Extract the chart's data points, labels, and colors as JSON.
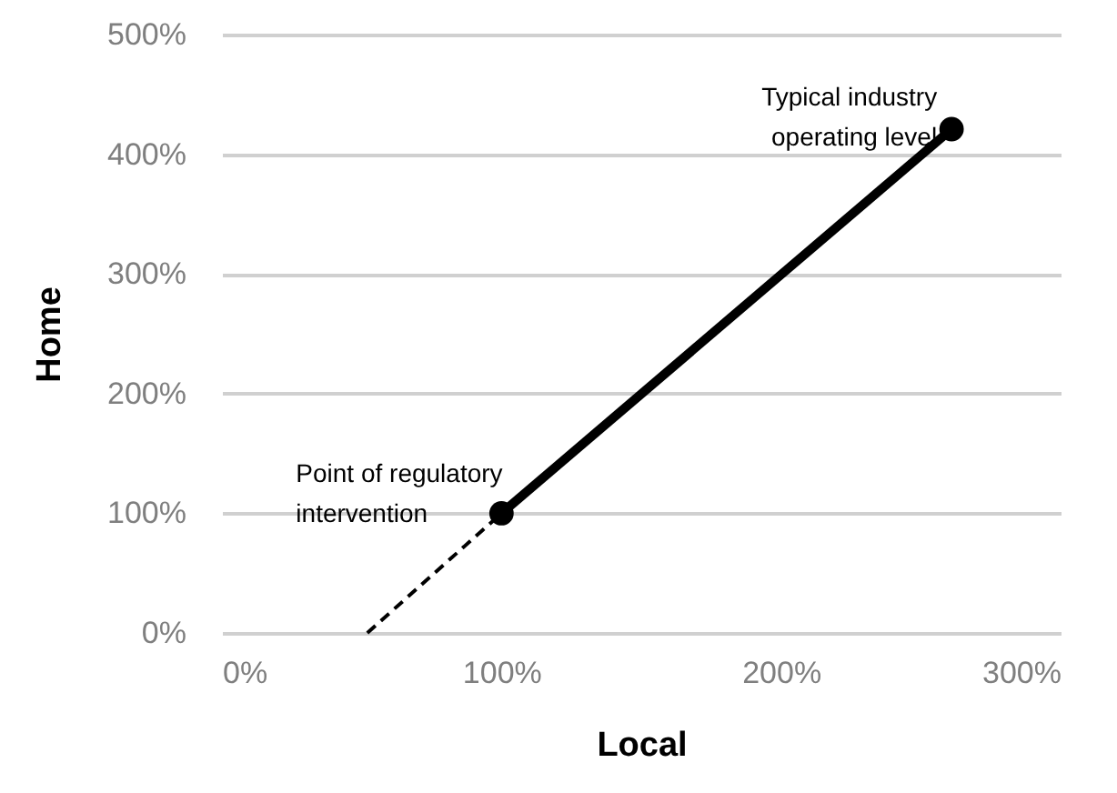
{
  "chart_data": {
    "type": "line",
    "xlabel": "Local",
    "ylabel": "Home",
    "series": [
      {
        "color": "#000000",
        "x": [
          52,
          100
        ],
        "values": [
          0,
          100
        ],
        "line_style": "dashed"
      },
      {
        "color": "#000000",
        "x": [
          100,
          261
        ],
        "values": [
          100,
          421
        ],
        "line_style": "solid",
        "marker": "circle"
      }
    ],
    "xlim": [
      0,
      300
    ],
    "ylim": [
      0,
      500
    ],
    "xticks": [
      {
        "value": 0,
        "label": "0%"
      },
      {
        "value": 100,
        "label": "100%"
      },
      {
        "value": 200,
        "label": "200%"
      },
      {
        "value": 300,
        "label": "300%"
      }
    ],
    "yticks": [
      {
        "value": 0,
        "label": "0%"
      },
      {
        "value": 100,
        "label": "100%"
      },
      {
        "value": 200,
        "label": "200%"
      },
      {
        "value": 300,
        "label": "300%"
      },
      {
        "value": 400,
        "label": "400%"
      },
      {
        "value": 500,
        "label": "500%"
      }
    ],
    "grid": "y",
    "annotations": [
      {
        "text": "Point of regulatory\nintervention",
        "x": 100,
        "y": 100
      },
      {
        "text": "Typical industry\noperating level",
        "x": 261,
        "y": 421
      }
    ]
  }
}
